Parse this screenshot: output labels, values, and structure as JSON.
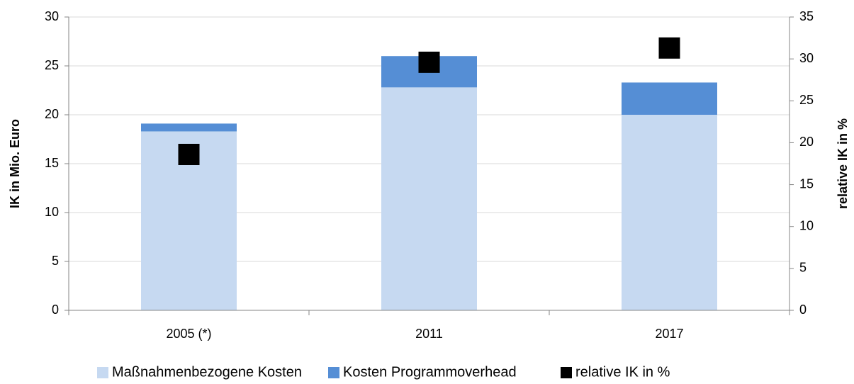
{
  "chart_data": {
    "type": "bar",
    "categories": [
      "2005 (*)",
      "2011",
      "2017"
    ],
    "series": [
      {
        "name": "Maßnahmenbezogene Kosten",
        "color": "#c6d9f1",
        "values": [
          18.3,
          22.8,
          20.0
        ]
      },
      {
        "name": "Kosten Programmoverhead",
        "color": "#558ed5",
        "values": [
          0.8,
          3.2,
          3.3
        ]
      },
      {
        "name": "relative IK in %",
        "color": "#000000",
        "values": [
          18.6,
          29.6,
          31.3
        ],
        "axis": "y2",
        "marker": "square"
      }
    ],
    "stacked": true,
    "ylabel": "IK in Mio. Euro",
    "y2label": "relative IK in %",
    "ylim": [
      0,
      30
    ],
    "yticks": [
      0,
      5,
      10,
      15,
      20,
      25,
      30
    ],
    "y2lim": [
      0,
      35
    ],
    "y2ticks": [
      0,
      5,
      10,
      15,
      20,
      25,
      30,
      35
    ],
    "grid": true,
    "legend": "bottom"
  }
}
